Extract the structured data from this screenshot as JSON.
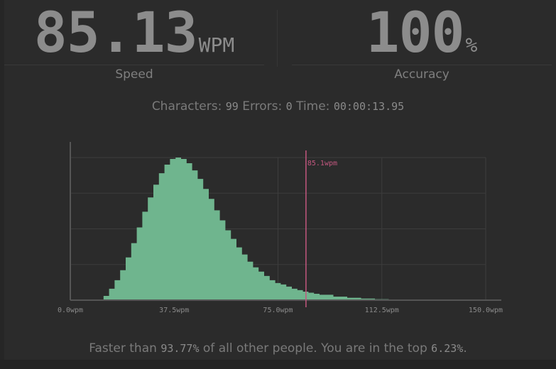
{
  "speed": {
    "value": "85.13",
    "unit": "WPM",
    "label": "Speed"
  },
  "accuracy": {
    "value": "100",
    "unit": "%",
    "label": "Accuracy"
  },
  "details": {
    "characters_label": "Characters:",
    "characters_value": "99",
    "errors_label": "Errors:",
    "errors_value": "0",
    "time_label": "Time:",
    "time_value": "00:00:13.95"
  },
  "chart_data": {
    "type": "area",
    "x_min": 0,
    "x_max": 150,
    "x_ticks": [
      0,
      37.5,
      75,
      112.5,
      150
    ],
    "x_tick_labels": [
      "0.0wpm",
      "37.5wpm",
      "75.0wpm",
      "112.5wpm",
      "150.0wpm"
    ],
    "grid": true,
    "marker": {
      "value": 85.1,
      "label": "85.1wpm",
      "color": "#c2577f"
    },
    "fill_color": "#6fb58e",
    "x": [
      10,
      12,
      14,
      16,
      18,
      20,
      22,
      24,
      26,
      28,
      30,
      32,
      34,
      36,
      38,
      40,
      42,
      44,
      46,
      48,
      50,
      52,
      54,
      56,
      58,
      60,
      62,
      64,
      66,
      68,
      70,
      72,
      74,
      76,
      78,
      80,
      82,
      84,
      86,
      88,
      90,
      95,
      100,
      105,
      110,
      115,
      120,
      125,
      130,
      135,
      140
    ],
    "y": [
      0.0,
      0.03,
      0.08,
      0.14,
      0.21,
      0.3,
      0.4,
      0.51,
      0.62,
      0.72,
      0.81,
      0.89,
      0.95,
      0.99,
      1.0,
      0.99,
      0.96,
      0.91,
      0.85,
      0.78,
      0.71,
      0.63,
      0.56,
      0.49,
      0.43,
      0.37,
      0.32,
      0.27,
      0.23,
      0.2,
      0.17,
      0.14,
      0.12,
      0.11,
      0.095,
      0.08,
      0.07,
      0.06,
      0.052,
      0.045,
      0.038,
      0.025,
      0.017,
      0.011,
      0.007,
      0.005,
      0.003,
      0.002,
      0.001,
      0.0005,
      0.0
    ]
  },
  "footer": {
    "prefix": "Faster than",
    "faster_value": "93.77%",
    "middle": "of all other people. You are in the top",
    "top_value": "6.23%",
    "suffix": "."
  }
}
